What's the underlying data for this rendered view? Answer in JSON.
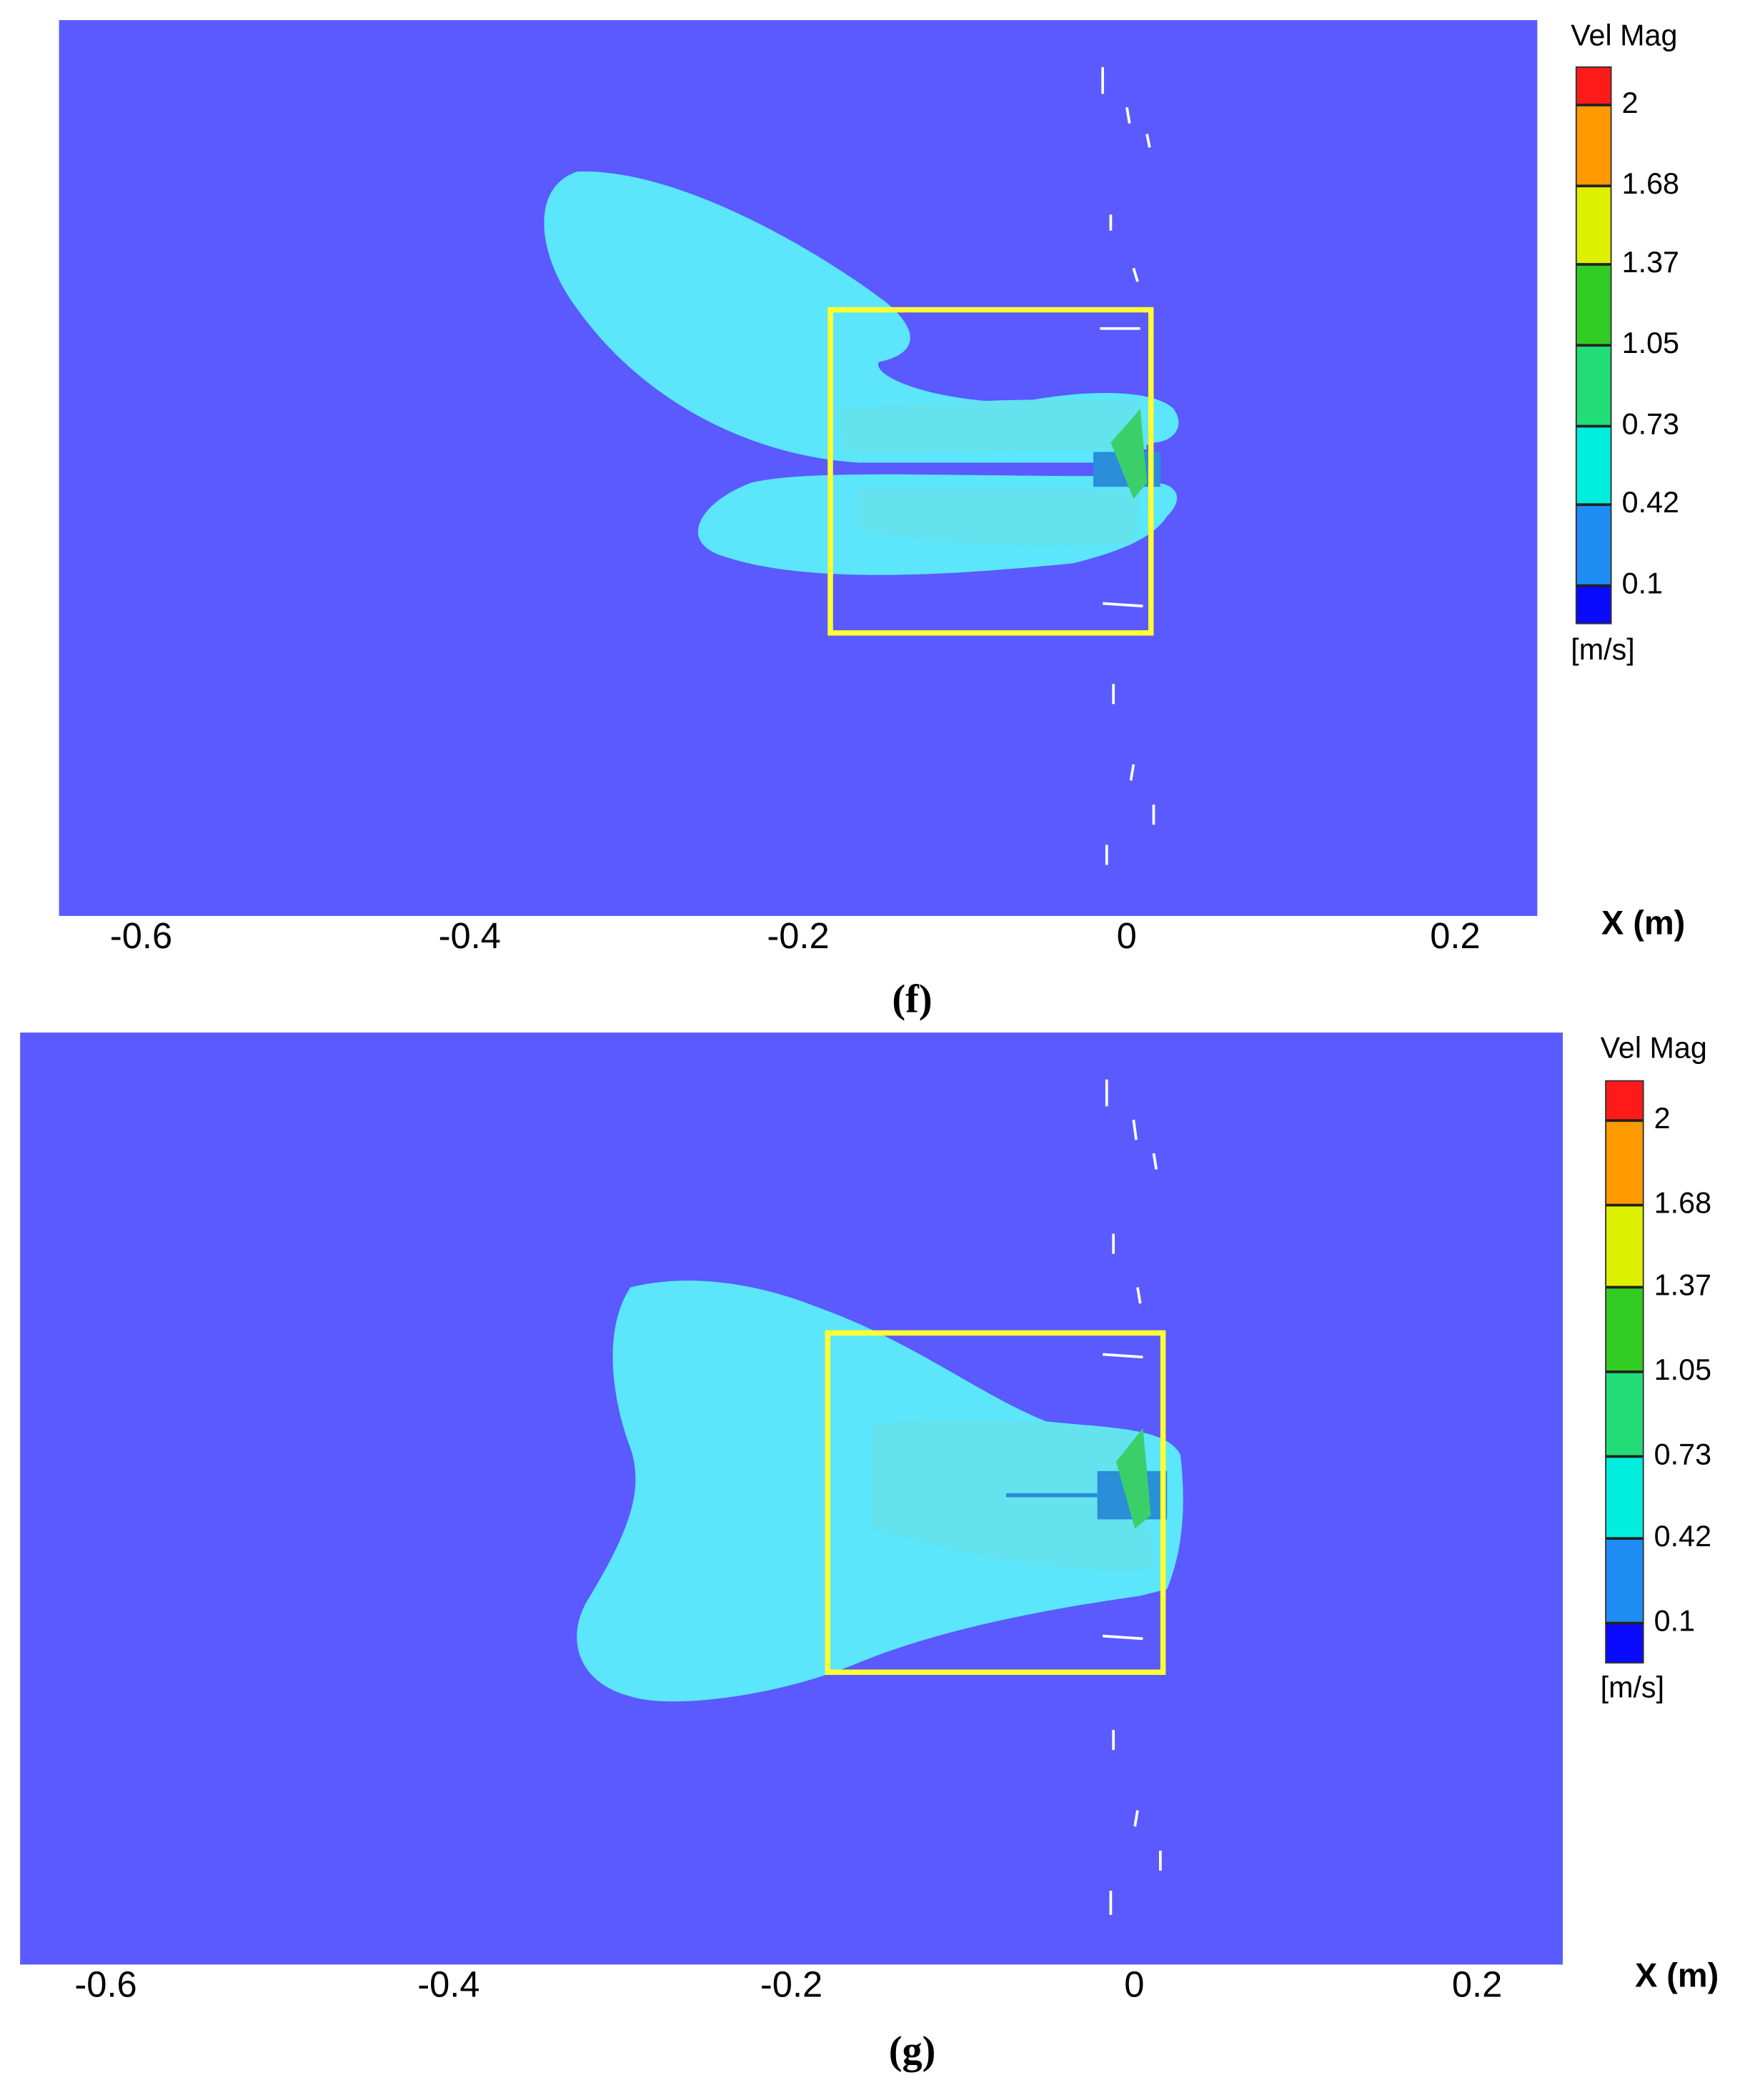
{
  "chart_data": [
    {
      "type": "contour",
      "xlim": [
        -0.65,
        0.25
      ],
      "xticks": [
        -0.6,
        -0.4,
        -0.2,
        0,
        0.2
      ],
      "x_label": "X (m)",
      "caption": "(f)",
      "colorbar": {
        "title": "Vel Mag",
        "unit": "[m/s]",
        "clim": [
          -0.05,
          2.15
        ],
        "ticks": [
          0.1,
          0.42,
          0.73,
          1.05,
          1.37,
          1.68,
          2
        ],
        "colors": [
          "#0a0aff",
          "#1e8ef5",
          "#00eedd",
          "#22dd77",
          "#33cc22",
          "#ddf000",
          "#ff9900",
          "#ff1a1a"
        ]
      }
    },
    {
      "type": "contour",
      "xlim": [
        -0.65,
        0.25
      ],
      "xticks": [
        -0.6,
        -0.4,
        -0.2,
        0,
        0.2
      ],
      "x_label": "X (m)",
      "caption": "(g)",
      "colorbar": {
        "title": "Vel Mag",
        "unit": "[m/s]",
        "clim": [
          -0.05,
          2.15
        ],
        "ticks": [
          0.1,
          0.42,
          0.73,
          1.05,
          1.37,
          1.68,
          2
        ],
        "colors": [
          "#0a0aff",
          "#1e8ef5",
          "#00eedd",
          "#22dd77",
          "#33cc22",
          "#ddf000",
          "#ff9900",
          "#ff1a1a"
        ]
      }
    }
  ]
}
